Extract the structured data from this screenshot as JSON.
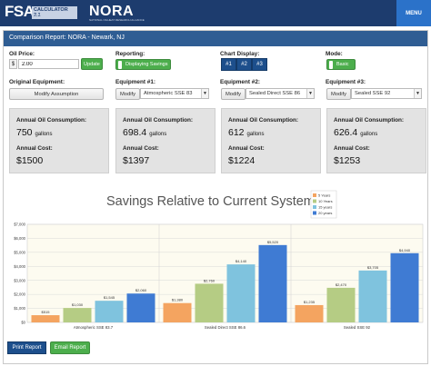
{
  "header": {
    "logo_main": "FSA",
    "logo_badge": "CALCULATOR 2.1",
    "logo_sub": "Fuel Savings Analysis",
    "partner_logo": "NORA",
    "partner_sub": "NATIONAL OILHEAT RESEARCH ALLIANCE",
    "menu_label": "MENU"
  },
  "report": {
    "title": "Comparison Report: NORA - Newark, NJ"
  },
  "controls": {
    "oil_price_label": "Oil Price:",
    "currency": "$",
    "oil_price_value": "2.00",
    "update_label": "Update",
    "reporting_label": "Reporting:",
    "reporting_value": "Displaying Savings",
    "chart_display_label": "Chart Display:",
    "chart_display_options": [
      "#1",
      "#2",
      "#3"
    ],
    "mode_label": "Mode:",
    "mode_value": "Basic",
    "original_equipment_label": "Original Equipment:",
    "modify_assumption_label": "Modify Assumption",
    "equipment": [
      {
        "label": "Equipment #1:",
        "modify": "Modify",
        "selected": "Atmospheric SSE 83"
      },
      {
        "label": "Equipment #2:",
        "modify": "Modify",
        "selected": "Sealed Direct SSE 86"
      },
      {
        "label": "Equipment #3:",
        "modify": "Modify",
        "selected": "Sealed SSE 92"
      }
    ]
  },
  "cards": [
    {
      "consumption_label": "Annual Oil Consumption:",
      "consumption": "750",
      "unit": "gallons",
      "cost_label": "Annual Cost:",
      "cost": "$1500"
    },
    {
      "consumption_label": "Annual Oil Consumption:",
      "consumption": "698.4",
      "unit": "gallons",
      "cost_label": "Annual Cost:",
      "cost": "$1397"
    },
    {
      "consumption_label": "Annual Oil Consumption:",
      "consumption": "612",
      "unit": "gallons",
      "cost_label": "Annual Cost:",
      "cost": "$1224"
    },
    {
      "consumption_label": "Annual Oil Consumption:",
      "consumption": "626.4",
      "unit": "gallons",
      "cost_label": "Annual Cost:",
      "cost": "$1253"
    }
  ],
  "chart_data": {
    "type": "bar",
    "title": "Savings Relative to Current System",
    "categories": [
      "Atmospheric SSE 83.7",
      "Sealed Direct SSE 86.6",
      "Sealed SSE 92"
    ],
    "series": [
      {
        "name": "5 Years",
        "color": "#f4a460",
        "values": [
          515,
          1380,
          1235
        ],
        "labels": [
          "$515",
          "$1,380",
          "$1,235"
        ]
      },
      {
        "name": "10 Years",
        "color": "#b5cc84",
        "values": [
          1030,
          2760,
          2470
        ],
        "labels": [
          "$1,030",
          "$2,760",
          "$2,470"
        ]
      },
      {
        "name": "15 years",
        "color": "#7fc3de",
        "values": [
          1545,
          4140,
          3705
        ],
        "labels": [
          "$1,545",
          "$4,140",
          "$3,705"
        ]
      },
      {
        "name": "20 years",
        "color": "#3f7bd3",
        "values": [
          2060,
          5520,
          4940
        ],
        "labels": [
          "$2,060",
          "$5,520",
          "$4,940"
        ]
      }
    ],
    "y_ticks": [
      "$0",
      "$1,000",
      "$2,000",
      "$3,000",
      "$4,000",
      "$5,000",
      "$6,000",
      "$7,000"
    ],
    "ylim": [
      0,
      7000
    ],
    "grid": true,
    "legend": "top-right"
  },
  "footer": {
    "print_label": "Print Report",
    "email_label": "Email Report"
  }
}
